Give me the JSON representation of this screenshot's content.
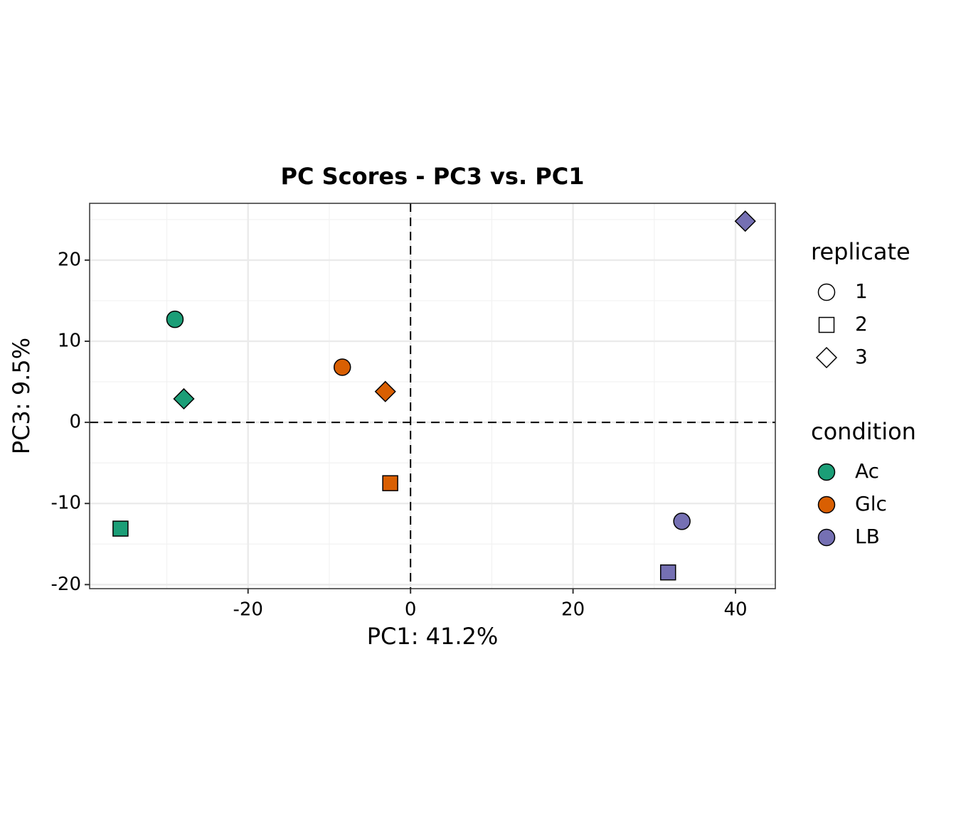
{
  "chart_data": {
    "type": "scatter",
    "title": "PC Scores - PC3 vs. PC1",
    "x_label": "PC1: 41.2%",
    "y_label": "PC3: 9.5%",
    "xlim": [
      -39.5,
      44.9
    ],
    "ylim": [
      -20.5,
      27.0
    ],
    "xticks": [
      -20,
      0,
      20,
      40
    ],
    "yticks": [
      -20,
      -10,
      0,
      10,
      20
    ],
    "xminor": [
      -30,
      -10,
      10,
      30
    ],
    "yminor": [
      -15,
      -5,
      5,
      15,
      25
    ],
    "grid": true,
    "hlines": [
      0
    ],
    "vlines": [
      0
    ],
    "shape_legend": {
      "title": "replicate",
      "labels": [
        "1",
        "2",
        "3"
      ],
      "shapes": [
        "circle",
        "square",
        "diamond"
      ]
    },
    "color_legend_title": "condition",
    "series": [
      {
        "name": "Ac",
        "color": "#1b9e77",
        "x": [
          -29.0,
          -35.7,
          -27.9
        ],
        "values": [
          12.7,
          -13.1,
          2.9
        ],
        "replicate": [
          "1",
          "2",
          "3"
        ]
      },
      {
        "name": "Glc",
        "color": "#d95f02",
        "x": [
          -8.4,
          -2.5,
          -3.1
        ],
        "values": [
          6.8,
          -7.5,
          3.8
        ],
        "replicate": [
          "1",
          "2",
          "3"
        ]
      },
      {
        "name": "LB",
        "color": "#7570b3",
        "x": [
          33.4,
          31.7,
          41.2
        ],
        "values": [
          -12.2,
          -18.5,
          24.8
        ],
        "replicate": [
          "1",
          "2",
          "3"
        ]
      }
    ]
  }
}
